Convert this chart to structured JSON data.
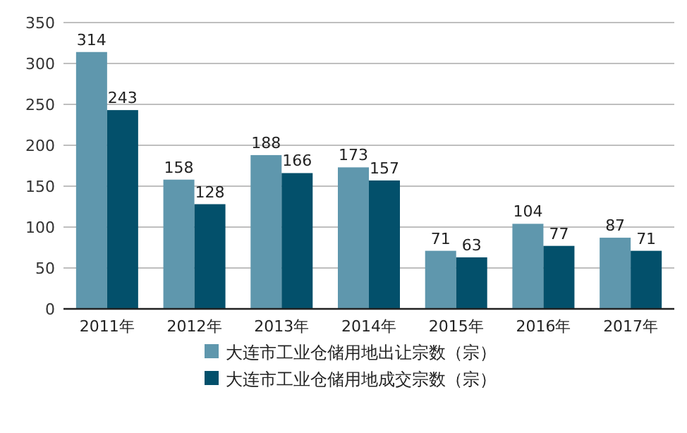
{
  "chart_data": {
    "type": "bar",
    "categories": [
      "2011年",
      "2012年",
      "2013年",
      "2014年",
      "2015年",
      "2016年",
      "2017年"
    ],
    "series": [
      {
        "name": "大连市工业仓储用地出让宗数（宗）",
        "color": "#5f97ad",
        "values": [
          314,
          158,
          188,
          173,
          71,
          104,
          87
        ]
      },
      {
        "name": "大连市工业仓储用地成交宗数（宗）",
        "color": "#03506b",
        "values": [
          243,
          128,
          166,
          157,
          63,
          77,
          71
        ]
      }
    ],
    "ylim": [
      0,
      350
    ],
    "yticks": [
      0,
      50,
      100,
      150,
      200,
      250,
      300,
      350
    ],
    "grid": "y",
    "legend": "bottom",
    "data_labels": true
  }
}
